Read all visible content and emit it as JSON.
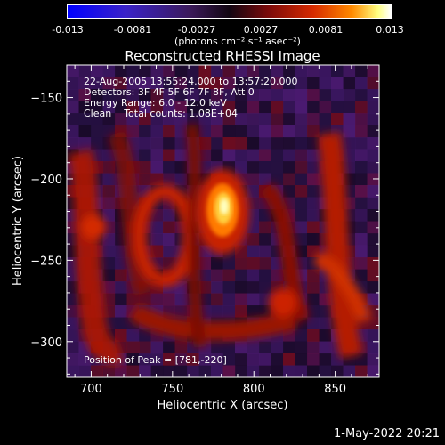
{
  "colorbar": {
    "tick_labels": [
      "-0.013",
      "-0.0081",
      "-0.0027",
      "0.0027",
      "0.0081",
      "0.013"
    ],
    "units_label": "(photons cm⁻² s⁻¹ asec⁻²)"
  },
  "chart_data": {
    "type": "heatmap",
    "title": "Reconstructed RHESSI Image",
    "xlabel": "Heliocentric X (arcsec)",
    "ylabel": "Heliocentric Y (arcsec)",
    "xlim": [
      685,
      877
    ],
    "ylim": [
      -322,
      -130
    ],
    "x_ticks": [
      700,
      750,
      800,
      850
    ],
    "y_ticks": [
      -150,
      -200,
      -250,
      -300
    ],
    "x_tick_labels": [
      "700",
      "750",
      "800",
      "850"
    ],
    "y_tick_labels": [
      "−150",
      "−200",
      "−250",
      "−300"
    ],
    "color_range": [
      -0.013,
      0.013
    ],
    "peak": [
      781,
      -220
    ],
    "annotations": [
      "22-Aug-2005 13:55:24.000 to 13:57:20.000",
      "Detectors: 3F 4F 5F 6F 7F 8F, Att 0",
      "Energy Range: 6.0 - 12.0 keV",
      "Clean    Total counts: 1.08E+04"
    ],
    "peak_label": "Position of Peak = [781,-220]"
  },
  "footer": {
    "date": "1-May-2022 20:21"
  }
}
